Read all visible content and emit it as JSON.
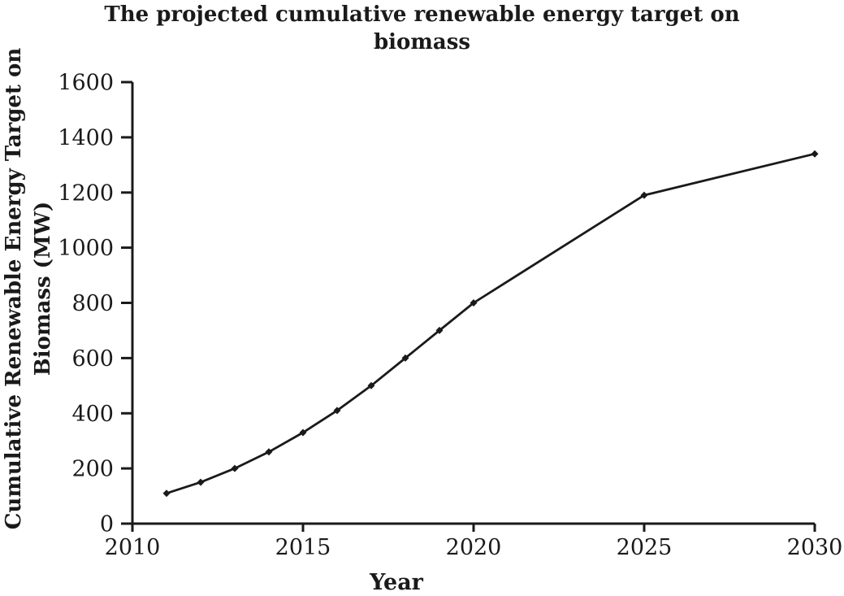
{
  "figure": {
    "background": "#ffffff",
    "ink_color": "#1a1a1a",
    "title_lines": [
      "The projected cumulative renewable energy target on",
      "biomass"
    ],
    "ylabel_lines": [
      "Cumulative Renewable Energy Target on",
      "Biomass (MW)"
    ]
  },
  "chart_data": {
    "type": "line",
    "title": "The projected cumulative renewable energy target on biomass",
    "xlabel": "Year",
    "ylabel": "Cumulative Renewable Energy Target on Biomass (MW)",
    "x": [
      2011,
      2012,
      2013,
      2014,
      2015,
      2016,
      2017,
      2018,
      2019,
      2020,
      2025,
      2030
    ],
    "values": [
      110,
      150,
      200,
      260,
      330,
      410,
      500,
      600,
      700,
      800,
      1190,
      1340
    ],
    "x_ticks": [
      2010,
      2015,
      2020,
      2025,
      2030
    ],
    "y_ticks": [
      0,
      200,
      400,
      600,
      800,
      1000,
      1200,
      1400,
      1600
    ],
    "xlim": [
      2010,
      2030
    ],
    "ylim": [
      0,
      1600
    ],
    "grid": false,
    "legend": false,
    "marker": "diamond",
    "line_color": "#1a1a1a"
  }
}
